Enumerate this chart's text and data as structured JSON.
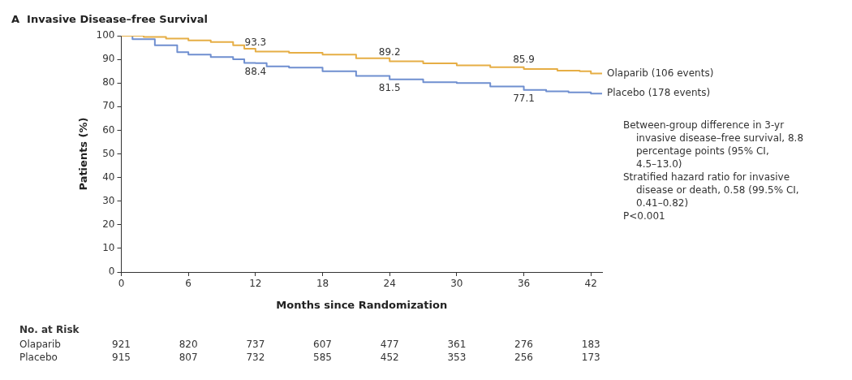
{
  "chart_data": {
    "type": "step",
    "title": "A  Invasive Disease–free Survival",
    "xlabel": "Months since Randomization",
    "ylabel": "Patients (%)",
    "xlim": [
      0,
      43
    ],
    "xticks": [
      0,
      6,
      12,
      18,
      24,
      30,
      36,
      42
    ],
    "ylim": [
      0,
      100
    ],
    "yticks": [
      0,
      10,
      20,
      30,
      40,
      50,
      60,
      70,
      80,
      90,
      100
    ],
    "grid": false,
    "legend": false,
    "series": [
      {
        "name": "Olaparib (106 events)",
        "color": "#e6ae45",
        "x": [
          0,
          2,
          4,
          6,
          8,
          10,
          11,
          12,
          15,
          18,
          21,
          24,
          27,
          30,
          33,
          36,
          39,
          41,
          42,
          43
        ],
        "values": [
          100,
          99.5,
          98.8,
          98,
          97.3,
          96,
          94.5,
          93.3,
          92.8,
          92,
          90.5,
          89.2,
          88.3,
          87.5,
          86.7,
          85.9,
          85.2,
          85,
          84,
          84
        ]
      },
      {
        "name": "Placebo (178 events)",
        "color": "#6f8fd0",
        "x": [
          0,
          1,
          3,
          5,
          6,
          8,
          10,
          11,
          12,
          13,
          15,
          18,
          21,
          24,
          27,
          30,
          33,
          36,
          38,
          40,
          42,
          43
        ],
        "values": [
          100,
          98.5,
          96,
          93,
          92,
          91,
          90,
          88.5,
          88.4,
          87,
          86.5,
          85,
          83,
          81.5,
          80.3,
          80,
          78.5,
          77.1,
          76.5,
          76,
          75.5,
          75.5
        ]
      }
    ],
    "annotations": [
      {
        "text": "93.3",
        "x": 12,
        "y": 93.3
      },
      {
        "text": "88.4",
        "x": 12,
        "y": 88.4
      },
      {
        "text": "89.2",
        "x": 24,
        "y": 89.2
      },
      {
        "text": "81.5",
        "x": 24,
        "y": 81.5
      },
      {
        "text": "85.9",
        "x": 36,
        "y": 85.9
      },
      {
        "text": "77.1",
        "x": 36,
        "y": 77.1
      },
      "Between-group difference in 3-yr invasive disease–free survival, 8.8 percentage points (95% CI, 4.5–13.0)",
      "Stratified hazard ratio for invasive disease or death, 0.58 (99.5% CI, 0.41–0.82)",
      "P<0.001",
      "No. at Risk",
      "Olaparib",
      "921",
      "820",
      "737",
      "607",
      "477",
      "361",
      "276",
      "183",
      "Placebo",
      "915",
      "807",
      "732",
      "585",
      "452",
      "353",
      "256",
      "173"
    ]
  }
}
